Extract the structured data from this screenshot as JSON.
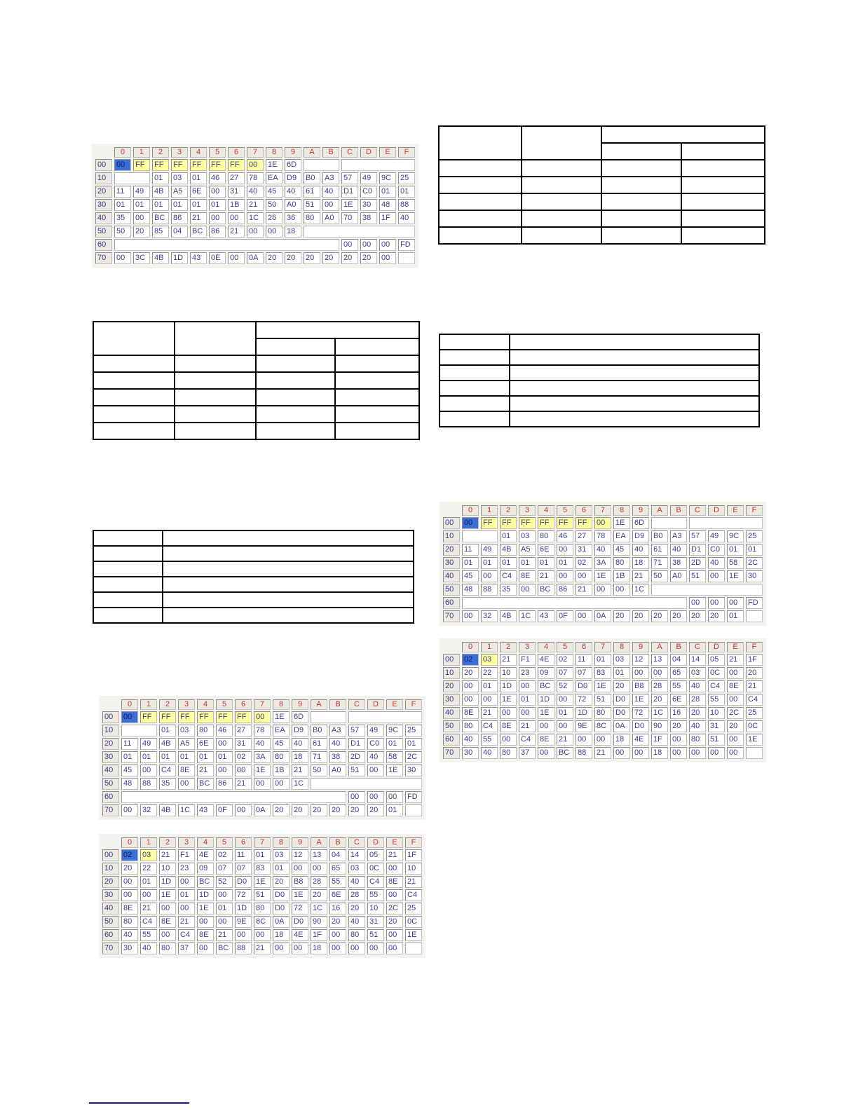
{
  "page": {
    "background": "#ffffff",
    "colors": {
      "hex_value_text": "#3c3c8e",
      "hex_col_header_text": "#c43434",
      "hex_header_bg": "#ebe9e0",
      "highlight_yellow": "#ffff9c",
      "selected_cell_bg": "#3a6fd8",
      "ruled_table_border": "#000000",
      "footnote_rule": "#1b1b8f"
    }
  },
  "hex_tables": [
    {
      "name": "eeprom-dump-top-left",
      "col_headers": [
        "0",
        "1",
        "2",
        "3",
        "4",
        "5",
        "6",
        "7",
        "8",
        "9",
        "A",
        "B",
        "C",
        "D",
        "E",
        "F"
      ],
      "row_labels": [
        "00",
        "10",
        "20",
        "30",
        "40",
        "50",
        "60",
        "70"
      ],
      "selected": {
        "row": 0,
        "col": 0
      },
      "yellow_spans": [
        {
          "row": 0,
          "col_start": 1,
          "col_end": 7
        }
      ],
      "empty_spans": [
        {
          "row": 0,
          "start": 10,
          "span": 2
        },
        {
          "row": 0,
          "start": 12,
          "span": 4
        },
        {
          "row": 1,
          "start": 0,
          "span": 2
        },
        {
          "row": 5,
          "start": 10,
          "span": 6
        },
        {
          "row": 6,
          "start": 0,
          "span": 12
        },
        {
          "row": 7,
          "start": 15,
          "span": 1
        }
      ],
      "rows": [
        [
          "00",
          "FF",
          "FF",
          "FF",
          "FF",
          "FF",
          "FF",
          "00",
          "1E",
          "6D",
          null,
          null,
          null,
          null,
          null,
          null
        ],
        [
          null,
          null,
          "01",
          "03",
          "01",
          "46",
          "27",
          "78",
          "EA",
          "D9",
          "B0",
          "A3",
          "57",
          "49",
          "9C",
          "25"
        ],
        [
          "11",
          "49",
          "4B",
          "A5",
          "6E",
          "00",
          "31",
          "40",
          "45",
          "40",
          "61",
          "40",
          "D1",
          "C0",
          "01",
          "01"
        ],
        [
          "01",
          "01",
          "01",
          "01",
          "01",
          "01",
          "1B",
          "21",
          "50",
          "A0",
          "51",
          "00",
          "1E",
          "30",
          "48",
          "88"
        ],
        [
          "35",
          "00",
          "BC",
          "86",
          "21",
          "00",
          "00",
          "1C",
          "26",
          "36",
          "80",
          "A0",
          "70",
          "38",
          "1F",
          "40"
        ],
        [
          "50",
          "20",
          "85",
          "04",
          "BC",
          "86",
          "21",
          "00",
          "00",
          "18",
          null,
          null,
          null,
          null,
          null,
          null
        ],
        [
          null,
          null,
          null,
          null,
          null,
          null,
          null,
          null,
          null,
          null,
          null,
          null,
          "00",
          "00",
          "00",
          "FD"
        ],
        [
          "00",
          "3C",
          "4B",
          "1D",
          "43",
          "0E",
          "00",
          "0A",
          "20",
          "20",
          "20",
          "20",
          "20",
          "20",
          "00",
          null
        ]
      ]
    },
    {
      "name": "eeprom-dump-right-1",
      "col_headers": [
        "0",
        "1",
        "2",
        "3",
        "4",
        "5",
        "6",
        "7",
        "8",
        "9",
        "A",
        "B",
        "C",
        "D",
        "E",
        "F"
      ],
      "row_labels": [
        "00",
        "10",
        "20",
        "30",
        "40",
        "50",
        "60",
        "70"
      ],
      "selected": {
        "row": 0,
        "col": 0
      },
      "yellow_spans": [
        {
          "row": 0,
          "col_start": 1,
          "col_end": 7
        }
      ],
      "empty_spans": [
        {
          "row": 0,
          "start": 10,
          "span": 2
        },
        {
          "row": 0,
          "start": 12,
          "span": 4
        },
        {
          "row": 1,
          "start": 0,
          "span": 2
        },
        {
          "row": 5,
          "start": 10,
          "span": 6
        },
        {
          "row": 6,
          "start": 0,
          "span": 12
        },
        {
          "row": 7,
          "start": 15,
          "span": 1
        }
      ],
      "rows": [
        [
          "00",
          "FF",
          "FF",
          "FF",
          "FF",
          "FF",
          "FF",
          "00",
          "1E",
          "6D",
          null,
          null,
          null,
          null,
          null,
          null
        ],
        [
          null,
          null,
          "01",
          "03",
          "80",
          "46",
          "27",
          "78",
          "EA",
          "D9",
          "B0",
          "A3",
          "57",
          "49",
          "9C",
          "25"
        ],
        [
          "11",
          "49",
          "4B",
          "A5",
          "6E",
          "00",
          "31",
          "40",
          "45",
          "40",
          "61",
          "40",
          "D1",
          "C0",
          "01",
          "01"
        ],
        [
          "01",
          "01",
          "01",
          "01",
          "01",
          "01",
          "02",
          "3A",
          "80",
          "18",
          "71",
          "38",
          "2D",
          "40",
          "58",
          "2C"
        ],
        [
          "45",
          "00",
          "C4",
          "8E",
          "21",
          "00",
          "00",
          "1E",
          "1B",
          "21",
          "50",
          "A0",
          "51",
          "00",
          "1E",
          "30"
        ],
        [
          "48",
          "88",
          "35",
          "00",
          "BC",
          "86",
          "21",
          "00",
          "00",
          "1C",
          null,
          null,
          null,
          null,
          null,
          null
        ],
        [
          null,
          null,
          null,
          null,
          null,
          null,
          null,
          null,
          null,
          null,
          null,
          null,
          "00",
          "00",
          "00",
          "FD"
        ],
        [
          "00",
          "32",
          "4B",
          "1C",
          "43",
          "0F",
          "00",
          "0A",
          "20",
          "20",
          "20",
          "20",
          "20",
          "20",
          "01",
          null
        ]
      ]
    },
    {
      "name": "eeprom-dump-right-2",
      "col_headers": [
        "0",
        "1",
        "2",
        "3",
        "4",
        "5",
        "6",
        "7",
        "8",
        "9",
        "A",
        "B",
        "C",
        "D",
        "E",
        "F"
      ],
      "row_labels": [
        "00",
        "10",
        "20",
        "30",
        "40",
        "50",
        "60",
        "70"
      ],
      "selected": {
        "row": 0,
        "col": 0
      },
      "yellow_spans": [
        {
          "row": 0,
          "col_start": 1,
          "col_end": 1
        }
      ],
      "empty_spans": [
        {
          "row": 7,
          "start": 15,
          "span": 1
        }
      ],
      "rows": [
        [
          "02",
          "03",
          "21",
          "F1",
          "4E",
          "02",
          "11",
          "01",
          "03",
          "12",
          "13",
          "04",
          "14",
          "05",
          "21",
          "1F"
        ],
        [
          "20",
          "22",
          "10",
          "23",
          "09",
          "07",
          "07",
          "83",
          "01",
          "00",
          "00",
          "65",
          "03",
          "0C",
          "00",
          "20"
        ],
        [
          "00",
          "01",
          "1D",
          "00",
          "BC",
          "52",
          "D0",
          "1E",
          "20",
          "B8",
          "28",
          "55",
          "40",
          "C4",
          "8E",
          "21"
        ],
        [
          "00",
          "00",
          "1E",
          "01",
          "1D",
          "00",
          "72",
          "51",
          "D0",
          "1E",
          "20",
          "6E",
          "28",
          "55",
          "00",
          "C4"
        ],
        [
          "8E",
          "21",
          "00",
          "00",
          "1E",
          "01",
          "1D",
          "80",
          "D0",
          "72",
          "1C",
          "16",
          "20",
          "10",
          "2C",
          "25"
        ],
        [
          "80",
          "C4",
          "8E",
          "21",
          "00",
          "00",
          "9E",
          "8C",
          "0A",
          "D0",
          "90",
          "20",
          "40",
          "31",
          "20",
          "0C"
        ],
        [
          "40",
          "55",
          "00",
          "C4",
          "8E",
          "21",
          "00",
          "00",
          "18",
          "4E",
          "1F",
          "00",
          "80",
          "51",
          "00",
          "1E"
        ],
        [
          "30",
          "40",
          "80",
          "37",
          "00",
          "BC",
          "88",
          "21",
          "00",
          "00",
          "18",
          "00",
          "00",
          "00",
          "00",
          null
        ]
      ]
    },
    {
      "name": "eeprom-dump-bottom-1",
      "col_headers": [
        "0",
        "1",
        "2",
        "3",
        "4",
        "5",
        "6",
        "7",
        "8",
        "9",
        "A",
        "B",
        "C",
        "D",
        "E",
        "F"
      ],
      "row_labels": [
        "00",
        "10",
        "20",
        "30",
        "40",
        "50",
        "60",
        "70"
      ],
      "selected": {
        "row": 0,
        "col": 0
      },
      "yellow_spans": [
        {
          "row": 0,
          "col_start": 1,
          "col_end": 7
        }
      ],
      "empty_spans": [
        {
          "row": 0,
          "start": 10,
          "span": 2
        },
        {
          "row": 0,
          "start": 12,
          "span": 4
        },
        {
          "row": 1,
          "start": 0,
          "span": 2
        },
        {
          "row": 5,
          "start": 10,
          "span": 6
        },
        {
          "row": 6,
          "start": 0,
          "span": 12
        },
        {
          "row": 7,
          "start": 15,
          "span": 1
        }
      ],
      "rows": [
        [
          "00",
          "FF",
          "FF",
          "FF",
          "FF",
          "FF",
          "FF",
          "00",
          "1E",
          "6D",
          null,
          null,
          null,
          null,
          null,
          null
        ],
        [
          null,
          null,
          "01",
          "03",
          "80",
          "46",
          "27",
          "78",
          "EA",
          "D9",
          "B0",
          "A3",
          "57",
          "49",
          "9C",
          "25"
        ],
        [
          "11",
          "49",
          "4B",
          "A5",
          "6E",
          "00",
          "31",
          "40",
          "45",
          "40",
          "61",
          "40",
          "D1",
          "C0",
          "01",
          "01"
        ],
        [
          "01",
          "01",
          "01",
          "01",
          "01",
          "01",
          "02",
          "3A",
          "80",
          "18",
          "71",
          "38",
          "2D",
          "40",
          "58",
          "2C"
        ],
        [
          "45",
          "00",
          "C4",
          "8E",
          "21",
          "00",
          "00",
          "1E",
          "1B",
          "21",
          "50",
          "A0",
          "51",
          "00",
          "1E",
          "30"
        ],
        [
          "48",
          "88",
          "35",
          "00",
          "BC",
          "86",
          "21",
          "00",
          "00",
          "1C",
          null,
          null,
          null,
          null,
          null,
          null
        ],
        [
          null,
          null,
          null,
          null,
          null,
          null,
          null,
          null,
          null,
          null,
          null,
          null,
          "00",
          "00",
          "00",
          "FD"
        ],
        [
          "00",
          "32",
          "4B",
          "1C",
          "43",
          "0F",
          "00",
          "0A",
          "20",
          "20",
          "20",
          "20",
          "20",
          "20",
          "01",
          null
        ]
      ]
    },
    {
      "name": "eeprom-dump-bottom-2",
      "col_headers": [
        "0",
        "1",
        "2",
        "3",
        "4",
        "5",
        "6",
        "7",
        "8",
        "9",
        "A",
        "B",
        "C",
        "D",
        "E",
        "F"
      ],
      "row_labels": [
        "00",
        "10",
        "20",
        "30",
        "40",
        "50",
        "60",
        "70"
      ],
      "selected": {
        "row": 0,
        "col": 0
      },
      "yellow_spans": [
        {
          "row": 0,
          "col_start": 1,
          "col_end": 1
        }
      ],
      "empty_spans": [
        {
          "row": 7,
          "start": 15,
          "span": 1
        }
      ],
      "rows": [
        [
          "02",
          "03",
          "21",
          "F1",
          "4E",
          "02",
          "11",
          "01",
          "03",
          "12",
          "13",
          "04",
          "14",
          "05",
          "21",
          "1F"
        ],
        [
          "20",
          "22",
          "10",
          "23",
          "09",
          "07",
          "07",
          "83",
          "01",
          "00",
          "00",
          "65",
          "03",
          "0C",
          "00",
          "10"
        ],
        [
          "00",
          "01",
          "1D",
          "00",
          "BC",
          "52",
          "D0",
          "1E",
          "20",
          "B8",
          "28",
          "55",
          "40",
          "C4",
          "8E",
          "21"
        ],
        [
          "00",
          "00",
          "1E",
          "01",
          "1D",
          "00",
          "72",
          "51",
          "D0",
          "1E",
          "20",
          "6E",
          "28",
          "55",
          "00",
          "C4"
        ],
        [
          "8E",
          "21",
          "00",
          "00",
          "1E",
          "01",
          "1D",
          "80",
          "D0",
          "72",
          "1C",
          "16",
          "20",
          "10",
          "2C",
          "25"
        ],
        [
          "80",
          "C4",
          "8E",
          "21",
          "00",
          "00",
          "9E",
          "8C",
          "0A",
          "D0",
          "90",
          "20",
          "40",
          "31",
          "20",
          "0C"
        ],
        [
          "40",
          "55",
          "00",
          "C4",
          "8E",
          "21",
          "00",
          "00",
          "18",
          "4E",
          "1F",
          "00",
          "80",
          "51",
          "00",
          "1E"
        ],
        [
          "30",
          "40",
          "80",
          "37",
          "00",
          "BC",
          "88",
          "21",
          "00",
          "00",
          "18",
          "00",
          "00",
          "00",
          "00",
          null
        ]
      ]
    }
  ],
  "empty_tables": [
    {
      "name": "blank-split-header-table-top-right",
      "columns": 4,
      "header_rows": 2,
      "data_rows": 5
    },
    {
      "name": "blank-split-header-table-mid-left",
      "columns": 4,
      "header_rows": 2,
      "data_rows": 5
    },
    {
      "name": "blank-two-column-table-mid-right",
      "columns": 2,
      "data_rows": 6
    },
    {
      "name": "blank-two-column-table-left",
      "columns": 2,
      "data_rows": 6
    }
  ]
}
